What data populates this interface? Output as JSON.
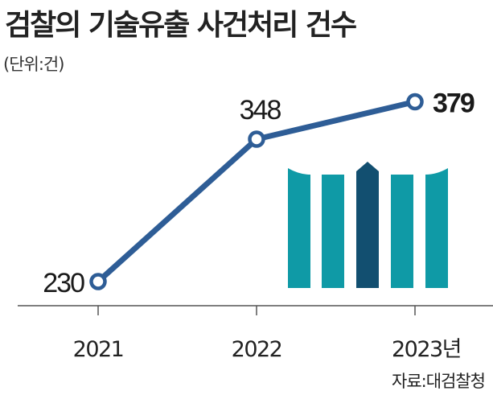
{
  "title": "검찰의 기술유출 사건처리 건수",
  "unit_note": "(단위:건)",
  "source": "자료:대검찰청",
  "colors": {
    "line": "#2e5d96",
    "logo_teal": "#0f9aa6",
    "logo_dark": "#124f70",
    "axis": "#555555"
  },
  "logo": {
    "name": "supreme-prosecutors-office-logo"
  },
  "chart_data": {
    "type": "line",
    "title": "검찰의 기술유출 사건처리 건수",
    "xlabel": "",
    "ylabel": "",
    "unit": "(단위:건)",
    "categories": [
      "2021",
      "2022",
      "2023년"
    ],
    "values": [
      230,
      348,
      379
    ],
    "data_labels": [
      "230",
      "348",
      "379"
    ],
    "ylim": [
      210,
      400
    ],
    "grid": false,
    "legend": "none"
  }
}
